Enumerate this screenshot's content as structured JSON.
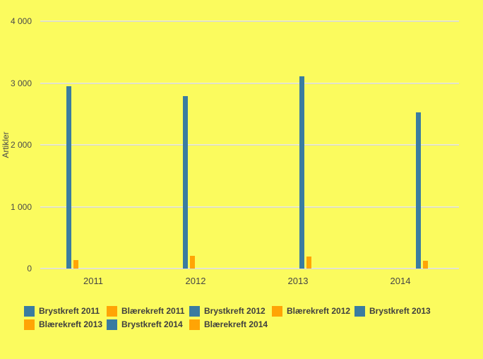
{
  "page": {
    "background_color": "#fbfb5e",
    "gridline_color": "#ededd9",
    "text_color": "#4a4a4a"
  },
  "chart_data": {
    "type": "bar",
    "title": "",
    "xlabel": "",
    "ylabel": "Artikler",
    "ylim": [
      0,
      4000
    ],
    "ytick_labels": [
      "0",
      "1 000",
      "2 000",
      "3 000",
      "4 000"
    ],
    "ytick_values": [
      0,
      1000,
      2000,
      3000,
      4000
    ],
    "categories": [
      "2011",
      "2012",
      "2013",
      "2014"
    ],
    "grid": true,
    "legend_position": "bottom",
    "series": [
      {
        "name": "Brystkreft 2011",
        "color": "#3a7ca0",
        "values": [
          2950,
          0,
          0,
          0
        ]
      },
      {
        "name": "Blærekreft 2011",
        "color": "#ffa405",
        "values": [
          140,
          0,
          0,
          0
        ]
      },
      {
        "name": "Brystkreft 2012",
        "color": "#3a7ca0",
        "values": [
          0,
          2790,
          0,
          0
        ]
      },
      {
        "name": "Blærekreft 2012",
        "color": "#ffa405",
        "values": [
          0,
          210,
          0,
          0
        ]
      },
      {
        "name": "Brystkreft 2013",
        "color": "#3a7ca0",
        "values": [
          0,
          0,
          3110,
          0
        ]
      },
      {
        "name": "Blærekreft 2013",
        "color": "#ffa405",
        "values": [
          0,
          0,
          200,
          0
        ]
      },
      {
        "name": "Brystkreft 2014",
        "color": "#3a7ca0",
        "values": [
          0,
          0,
          0,
          2530
        ]
      },
      {
        "name": "Blærekreft 2014",
        "color": "#ffa405",
        "values": [
          0,
          0,
          0,
          130
        ]
      }
    ]
  }
}
